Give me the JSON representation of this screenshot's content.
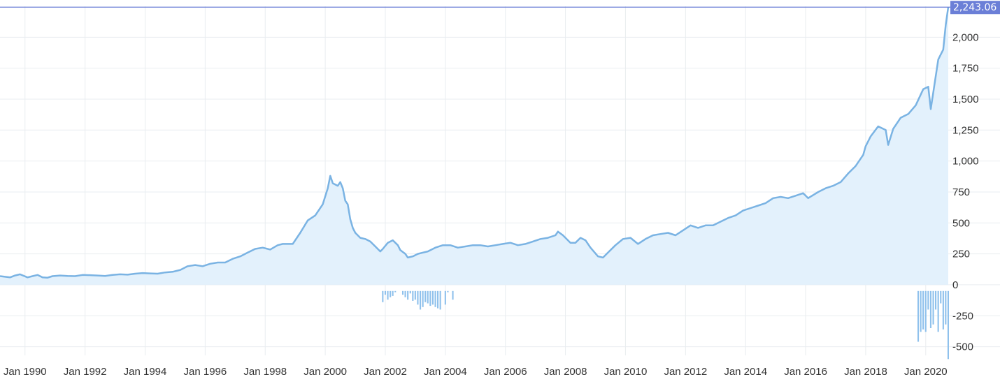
{
  "chart_data": {
    "type": "area",
    "title": "",
    "xlabel": "",
    "ylabel": "",
    "x_tick_labels": [
      "Jan 1990",
      "Jan 1992",
      "Jan 1994",
      "Jan 1996",
      "Jan 1998",
      "Jan 2000",
      "Jan 2002",
      "Jan 2004",
      "Jan 2006",
      "Jan 2008",
      "Jan 2010",
      "Jan 2012",
      "Jan 2014",
      "Jan 2016",
      "Jan 2018",
      "Jan 2020"
    ],
    "y_tick_labels": [
      "2,000",
      "1,750",
      "1,500",
      "1,250",
      "1,000",
      "750",
      "500",
      "250",
      "0",
      "-250",
      "-500"
    ],
    "xlim": [
      "1989-03",
      "2020-10"
    ],
    "ylim": [
      -570,
      2250
    ],
    "grid": true,
    "last_value_label": "2,243.06",
    "colors": {
      "line": "#7ab3e3",
      "area": "#e3f1fc",
      "bars": "#8fc1ec",
      "last_value_bg": "#6b7fd7",
      "crosshair": "#6b7fd7"
    },
    "series": [
      {
        "type": "area",
        "x": [
          "1989-03",
          "1989-07",
          "1989-09",
          "1989-11",
          "1990-02",
          "1990-04",
          "1990-06",
          "1990-08",
          "1990-10",
          "1990-12",
          "1991-03",
          "1991-06",
          "1991-09",
          "1991-12",
          "1992-03",
          "1992-06",
          "1992-09",
          "1992-12",
          "1993-03",
          "1993-06",
          "1993-09",
          "1993-12",
          "1994-03",
          "1994-06",
          "1994-09",
          "1994-12",
          "1995-03",
          "1995-06",
          "1995-09",
          "1995-12",
          "1996-03",
          "1996-06",
          "1996-09",
          "1996-12",
          "1997-03",
          "1997-06",
          "1997-09",
          "1997-12",
          "1998-03",
          "1998-06",
          "1998-08",
          "1998-10",
          "1998-12",
          "1999-03",
          "1999-06",
          "1999-09",
          "1999-12",
          "2000-02",
          "2000-03",
          "2000-04",
          "2000-06",
          "2000-07",
          "2000-08",
          "2000-09",
          "2000-10",
          "2000-11",
          "2000-12",
          "2001-01",
          "2001-03",
          "2001-05",
          "2001-07",
          "2001-09",
          "2001-11",
          "2001-12",
          "2002-02",
          "2002-04",
          "2002-06",
          "2002-07",
          "2002-09",
          "2002-10",
          "2002-12",
          "2003-02",
          "2003-04",
          "2003-06",
          "2003-09",
          "2003-12",
          "2004-03",
          "2004-06",
          "2004-09",
          "2004-12",
          "2005-03",
          "2005-06",
          "2005-09",
          "2005-12",
          "2006-03",
          "2006-06",
          "2006-09",
          "2006-12",
          "2007-03",
          "2007-06",
          "2007-09",
          "2007-10",
          "2007-12",
          "2008-03",
          "2008-05",
          "2008-07",
          "2008-09",
          "2008-11",
          "2009-02",
          "2009-04",
          "2009-06",
          "2009-09",
          "2009-12",
          "2010-03",
          "2010-06",
          "2010-09",
          "2010-12",
          "2011-03",
          "2011-06",
          "2011-09",
          "2011-12",
          "2012-03",
          "2012-06",
          "2012-09",
          "2012-12",
          "2013-03",
          "2013-06",
          "2013-09",
          "2013-12",
          "2014-03",
          "2014-06",
          "2014-09",
          "2014-12",
          "2015-03",
          "2015-06",
          "2015-09",
          "2015-12",
          "2016-02",
          "2016-06",
          "2016-09",
          "2016-12",
          "2017-03",
          "2017-06",
          "2017-09",
          "2017-12",
          "2018-01",
          "2018-03",
          "2018-06",
          "2018-09",
          "2018-10",
          "2018-12",
          "2019-03",
          "2019-06",
          "2019-09",
          "2019-12",
          "2020-02",
          "2020-03",
          "2020-06",
          "2020-08",
          "2020-09",
          "2020-10"
        ],
        "y": [
          70,
          60,
          75,
          85,
          60,
          70,
          80,
          60,
          58,
          70,
          75,
          72,
          70,
          80,
          78,
          75,
          72,
          80,
          85,
          82,
          90,
          95,
          92,
          90,
          100,
          105,
          120,
          150,
          160,
          150,
          170,
          180,
          180,
          210,
          230,
          260,
          290,
          300,
          285,
          320,
          330,
          330,
          330,
          420,
          520,
          560,
          650,
          780,
          880,
          820,
          800,
          830,
          780,
          680,
          650,
          530,
          460,
          420,
          380,
          370,
          350,
          310,
          270,
          290,
          340,
          360,
          320,
          280,
          250,
          220,
          230,
          250,
          260,
          270,
          300,
          320,
          320,
          300,
          310,
          320,
          320,
          310,
          320,
          330,
          340,
          320,
          330,
          350,
          370,
          380,
          400,
          430,
          400,
          340,
          340,
          380,
          360,
          300,
          230,
          220,
          260,
          320,
          370,
          380,
          330,
          370,
          400,
          410,
          420,
          400,
          440,
          480,
          460,
          480,
          480,
          510,
          540,
          560,
          600,
          620,
          640,
          660,
          700,
          710,
          700,
          720,
          740,
          700,
          750,
          780,
          800,
          830,
          900,
          960,
          1050,
          1120,
          1200,
          1280,
          1250,
          1130,
          1260,
          1350,
          1380,
          1450,
          1580,
          1600,
          1420,
          1820,
          1900,
          2100,
          2243.06
        ]
      },
      {
        "type": "bar",
        "x": [
          "2001-12",
          "2002-01",
          "2002-02",
          "2002-03",
          "2002-04",
          "2002-05",
          "2002-06",
          "2002-07",
          "2002-08",
          "2002-09",
          "2002-10",
          "2002-11",
          "2002-12",
          "2003-01",
          "2003-02",
          "2003-03",
          "2003-04",
          "2003-05",
          "2003-06",
          "2003-07",
          "2003-08",
          "2003-09",
          "2003-10",
          "2003-11",
          "2004-01",
          "2004-02",
          "2004-03",
          "2004-04",
          "2019-10",
          "2019-11",
          "2019-12",
          "2020-01",
          "2020-02",
          "2020-03",
          "2020-04",
          "2020-05",
          "2020-06",
          "2020-07",
          "2020-08",
          "2020-09",
          "2020-10"
        ],
        "y": [
          -140,
          -80,
          -120,
          -100,
          -90,
          -60,
          -40,
          -20,
          -80,
          -100,
          -120,
          -70,
          -130,
          -120,
          -160,
          -200,
          -180,
          -140,
          -150,
          -170,
          -160,
          -180,
          -190,
          -200,
          -160,
          -60,
          -40,
          -120,
          -460,
          -380,
          -360,
          -380,
          -200,
          -350,
          -320,
          -200,
          -380,
          -150,
          -360,
          -320,
          -600
        ]
      }
    ]
  }
}
